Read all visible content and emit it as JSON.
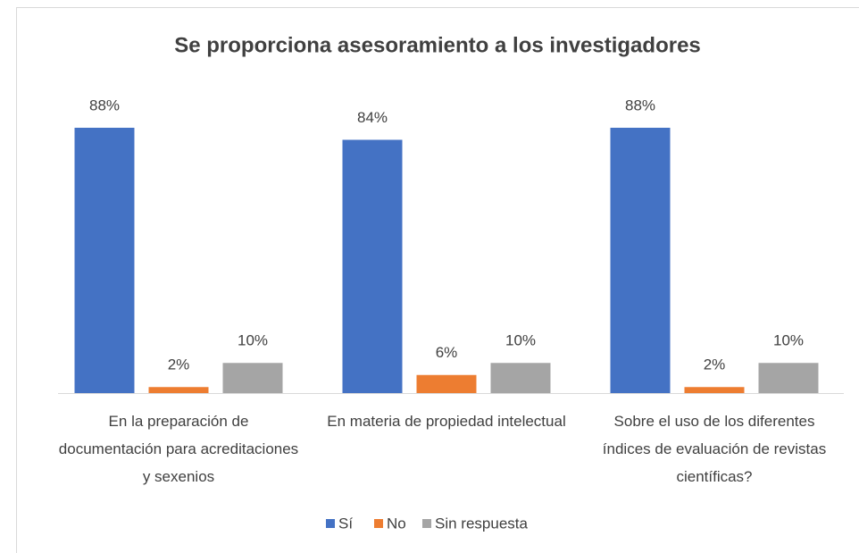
{
  "chart_data": {
    "type": "bar",
    "title": "Se proporciona asesoramiento a los investigadores",
    "categories": [
      "En la preparación de documentación para acreditaciones y sexenios",
      "En materia de propiedad intelectual",
      "Sobre el uso de los diferentes índices de evaluación de revistas científicas?"
    ],
    "series": [
      {
        "name": "Sí",
        "color": "#4472c4",
        "values": [
          88,
          84,
          88
        ],
        "value_labels": [
          "88%",
          "84%",
          "88%"
        ]
      },
      {
        "name": "No",
        "color": "#ed7d31",
        "values": [
          2,
          6,
          2
        ],
        "value_labels": [
          "2%",
          "6%",
          "2%"
        ]
      },
      {
        "name": "Sin respuesta",
        "color": "#a5a5a5",
        "values": [
          10,
          10,
          10
        ],
        "value_labels": [
          "10%",
          "10%",
          "10%"
        ]
      }
    ],
    "legend": "bottom"
  }
}
